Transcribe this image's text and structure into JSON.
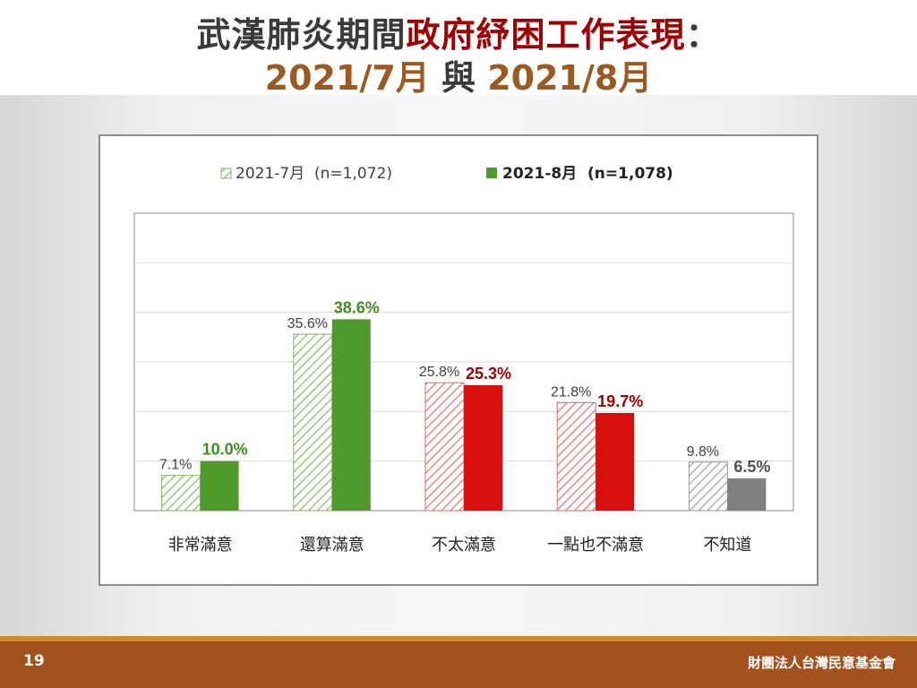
{
  "title": {
    "line1_a": "武漢肺炎期間",
    "line1_b": "政府紓困工作表現",
    "line1_c": "：",
    "line2_a": "2021/7月",
    "line2_b": " 與 ",
    "line2_c": "2021/8月"
  },
  "footer": {
    "page_number": "19",
    "organization": "財團法人台灣民意基金會"
  },
  "colors": {
    "green": "#4e9a2a",
    "green_label": "#3f8f1e",
    "red": "#d90f0f",
    "red_label": "#a00000",
    "gray": "#7f7f7f",
    "gray_label": "#505050"
  },
  "chart_data": {
    "type": "bar",
    "categories": [
      "非常滿意",
      "還算滿意",
      "不太滿意",
      "一點也不滿意",
      "不知道"
    ],
    "category_colors": [
      "green",
      "green",
      "red",
      "red",
      "gray"
    ],
    "series": [
      {
        "name": "2021-7月  (n=1,072)",
        "style": "hatched",
        "values": [
          7.1,
          35.6,
          25.8,
          21.8,
          9.8
        ],
        "labels": [
          "7.1%",
          "35.6%",
          "25.8%",
          "21.8%",
          "9.8%"
        ]
      },
      {
        "name": "2021-8月  (n=1,078)",
        "style": "solid",
        "values": [
          10.0,
          38.6,
          25.3,
          19.7,
          6.5
        ],
        "labels": [
          "10.0%",
          "38.6%",
          "25.3%",
          "19.7%",
          "6.5%"
        ]
      }
    ],
    "ylim": [
      0,
      60
    ],
    "grid_step": 10,
    "grid": true,
    "legend_position": "top"
  }
}
